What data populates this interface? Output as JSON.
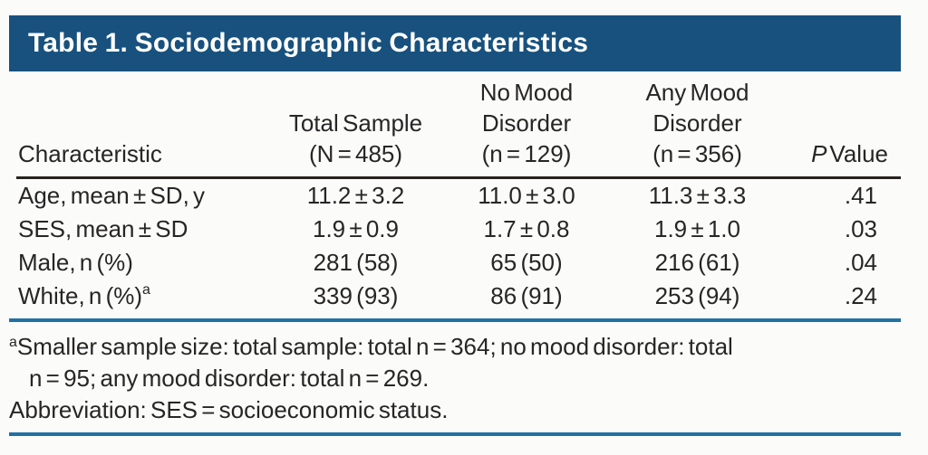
{
  "title": "Table 1. Sociodemographic Characteristics",
  "colors": {
    "header_bar_bg": "#18517D",
    "title_text": "#FFFFFF",
    "body_text": "#272525",
    "black_rule": "#27221F",
    "blue_rule": "#2271A4",
    "background": "#FBFCFA"
  },
  "table": {
    "headers": {
      "characteristic": "Characteristic",
      "total_line1": "Total Sample",
      "total_line2": "(N = 485)",
      "no_mood_line1": "No Mood",
      "no_mood_line2": "Disorder",
      "no_mood_line3": "(n = 129)",
      "any_mood_line1": "Any Mood",
      "any_mood_line2": "Disorder",
      "any_mood_line3": "(n = 356)",
      "p_value_italic": "P",
      "p_value_rest": "Value"
    },
    "rows": [
      {
        "label": "Age, mean ± SD, y",
        "sup": "",
        "total": "11.2 ± 3.2",
        "no_mood": "11.0 ± 3.0",
        "any_mood": "11.3 ± 3.3",
        "p": ".41"
      },
      {
        "label": "SES, mean ± SD",
        "sup": "",
        "total": "1.9 ± 0.9",
        "no_mood": "1.7 ± 0.8",
        "any_mood": "1.9 ± 1.0",
        "p": ".03"
      },
      {
        "label": "Male, n (%)",
        "sup": "",
        "total": "281 (58)",
        "no_mood": "65 (50)",
        "any_mood": "216 (61)",
        "p": ".04"
      },
      {
        "label": "White, n (%)",
        "sup": "a",
        "total": "339 (93)",
        "no_mood": "86 (91)",
        "any_mood": "253 (94)",
        "p": ".24"
      }
    ]
  },
  "footnotes": {
    "sup": "a",
    "line1": "Smaller sample size: total sample: total n = 364; no mood disorder: total",
    "line2": "n = 95; any mood disorder: total n = 269.",
    "abbreviation": "Abbreviation: SES = socioeconomic status."
  }
}
